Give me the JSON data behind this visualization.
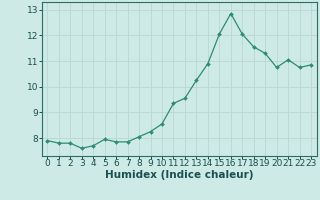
{
  "x": [
    0,
    1,
    2,
    3,
    4,
    5,
    6,
    7,
    8,
    9,
    10,
    11,
    12,
    13,
    14,
    15,
    16,
    17,
    18,
    19,
    20,
    21,
    22,
    23
  ],
  "y": [
    7.9,
    7.8,
    7.8,
    7.6,
    7.7,
    7.95,
    7.85,
    7.85,
    8.05,
    8.25,
    8.55,
    9.35,
    9.55,
    10.25,
    10.9,
    12.05,
    12.85,
    12.05,
    11.55,
    11.3,
    10.75,
    11.05,
    10.75,
    10.85
  ],
  "xlabel": "Humidex (Indice chaleur)",
  "ylim": [
    7.3,
    13.3
  ],
  "xlim": [
    -0.5,
    23.5
  ],
  "yticks": [
    8,
    9,
    10,
    11,
    12,
    13
  ],
  "xticks": [
    0,
    1,
    2,
    3,
    4,
    5,
    6,
    7,
    8,
    9,
    10,
    11,
    12,
    13,
    14,
    15,
    16,
    17,
    18,
    19,
    20,
    21,
    22,
    23
  ],
  "line_color": "#2e8b74",
  "marker_color": "#2e8b74",
  "bg_color": "#ceeae6",
  "grid_color": "#b8d8d4",
  "axis_color": "#2e6b64",
  "tick_color": "#1a5050",
  "label_color": "#1a5050",
  "font_size_tick": 6.5,
  "font_size_label": 7.5
}
